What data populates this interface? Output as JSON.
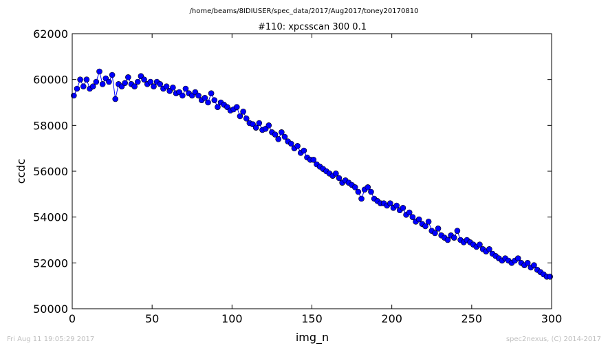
{
  "header": {
    "path": "/home/beams/8IDIUSER/spec_data/2017/Aug2017/toney20170810"
  },
  "footer": {
    "timestamp": "Fri Aug 11 19:05:29 2017",
    "credit": "spec2nexus, (C) 2014-2017"
  },
  "colors": {
    "series": "#0000ff",
    "axis": "#000000"
  },
  "chart_data": {
    "type": "line",
    "title": "#110: xpcsscan 300 0.1",
    "xlabel": "img_n",
    "ylabel": "ccdc",
    "xlim": [
      0,
      300
    ],
    "ylim": [
      50000,
      62000
    ],
    "xticks": [
      0,
      50,
      100,
      150,
      200,
      250,
      300
    ],
    "yticks": [
      50000,
      52000,
      54000,
      56000,
      58000,
      60000,
      62000
    ],
    "grid": false,
    "marker": "circle",
    "series": [
      {
        "x": [
          1,
          3,
          5,
          7,
          9,
          11,
          13,
          15,
          17,
          19,
          21,
          23,
          25,
          27,
          29,
          31,
          33,
          35,
          37,
          39,
          41,
          43,
          45,
          47,
          49,
          51,
          53,
          55,
          57,
          59,
          61,
          63,
          65,
          67,
          69,
          71,
          73,
          75,
          77,
          79,
          81,
          83,
          85,
          87,
          89,
          91,
          93,
          95,
          97,
          99,
          101,
          103,
          105,
          107,
          109,
          111,
          113,
          115,
          117,
          119,
          121,
          123,
          125,
          127,
          129,
          131,
          133,
          135,
          137,
          139,
          141,
          143,
          145,
          147,
          149,
          151,
          153,
          155,
          157,
          159,
          161,
          163,
          165,
          167,
          169,
          171,
          173,
          175,
          177,
          179,
          181,
          183,
          185,
          187,
          189,
          191,
          193,
          195,
          197,
          199,
          201,
          203,
          205,
          207,
          209,
          211,
          213,
          215,
          217,
          219,
          221,
          223,
          225,
          227,
          229,
          231,
          233,
          235,
          237,
          239,
          241,
          243,
          245,
          247,
          249,
          251,
          253,
          255,
          257,
          259,
          261,
          263,
          265,
          267,
          269,
          271,
          273,
          275,
          277,
          279,
          281,
          283,
          285,
          287,
          289,
          291,
          293,
          295,
          297,
          299
        ],
        "y": [
          59300,
          59600,
          60000,
          59700,
          60000,
          59600,
          59700,
          59900,
          60350,
          59800,
          60050,
          59900,
          60200,
          59150,
          59800,
          59700,
          59850,
          60100,
          59800,
          59700,
          59900,
          60150,
          60000,
          59800,
          59900,
          59700,
          59900,
          59800,
          59600,
          59700,
          59500,
          59650,
          59400,
          59450,
          59300,
          59600,
          59400,
          59300,
          59450,
          59300,
          59100,
          59200,
          59000,
          59400,
          59100,
          58800,
          59000,
          58900,
          58800,
          58650,
          58700,
          58800,
          58400,
          58600,
          58300,
          58100,
          58050,
          57900,
          58100,
          57800,
          57850,
          58000,
          57700,
          57600,
          57400,
          57700,
          57500,
          57300,
          57200,
          57000,
          57100,
          56800,
          56900,
          56600,
          56500,
          56500,
          56300,
          56200,
          56100,
          56000,
          55900,
          55800,
          55900,
          55700,
          55500,
          55600,
          55500,
          55400,
          55300,
          55100,
          54800,
          55200,
          55300,
          55100,
          54800,
          54700,
          54600,
          54600,
          54500,
          54600,
          54400,
          54500,
          54300,
          54400,
          54100,
          54200,
          54000,
          53800,
          53900,
          53700,
          53600,
          53800,
          53400,
          53300,
          53500,
          53200,
          53100,
          53000,
          53200,
          53100,
          53400,
          53000,
          52900,
          53000,
          52900,
          52800,
          52700,
          52800,
          52600,
          52500,
          52600,
          52400,
          52300,
          52200,
          52100,
          52200,
          52100,
          52000,
          52100,
          52200,
          52000,
          51900,
          52000,
          51800,
          51900,
          51700,
          51600,
          51500,
          51400,
          51400
        ]
      }
    ]
  }
}
